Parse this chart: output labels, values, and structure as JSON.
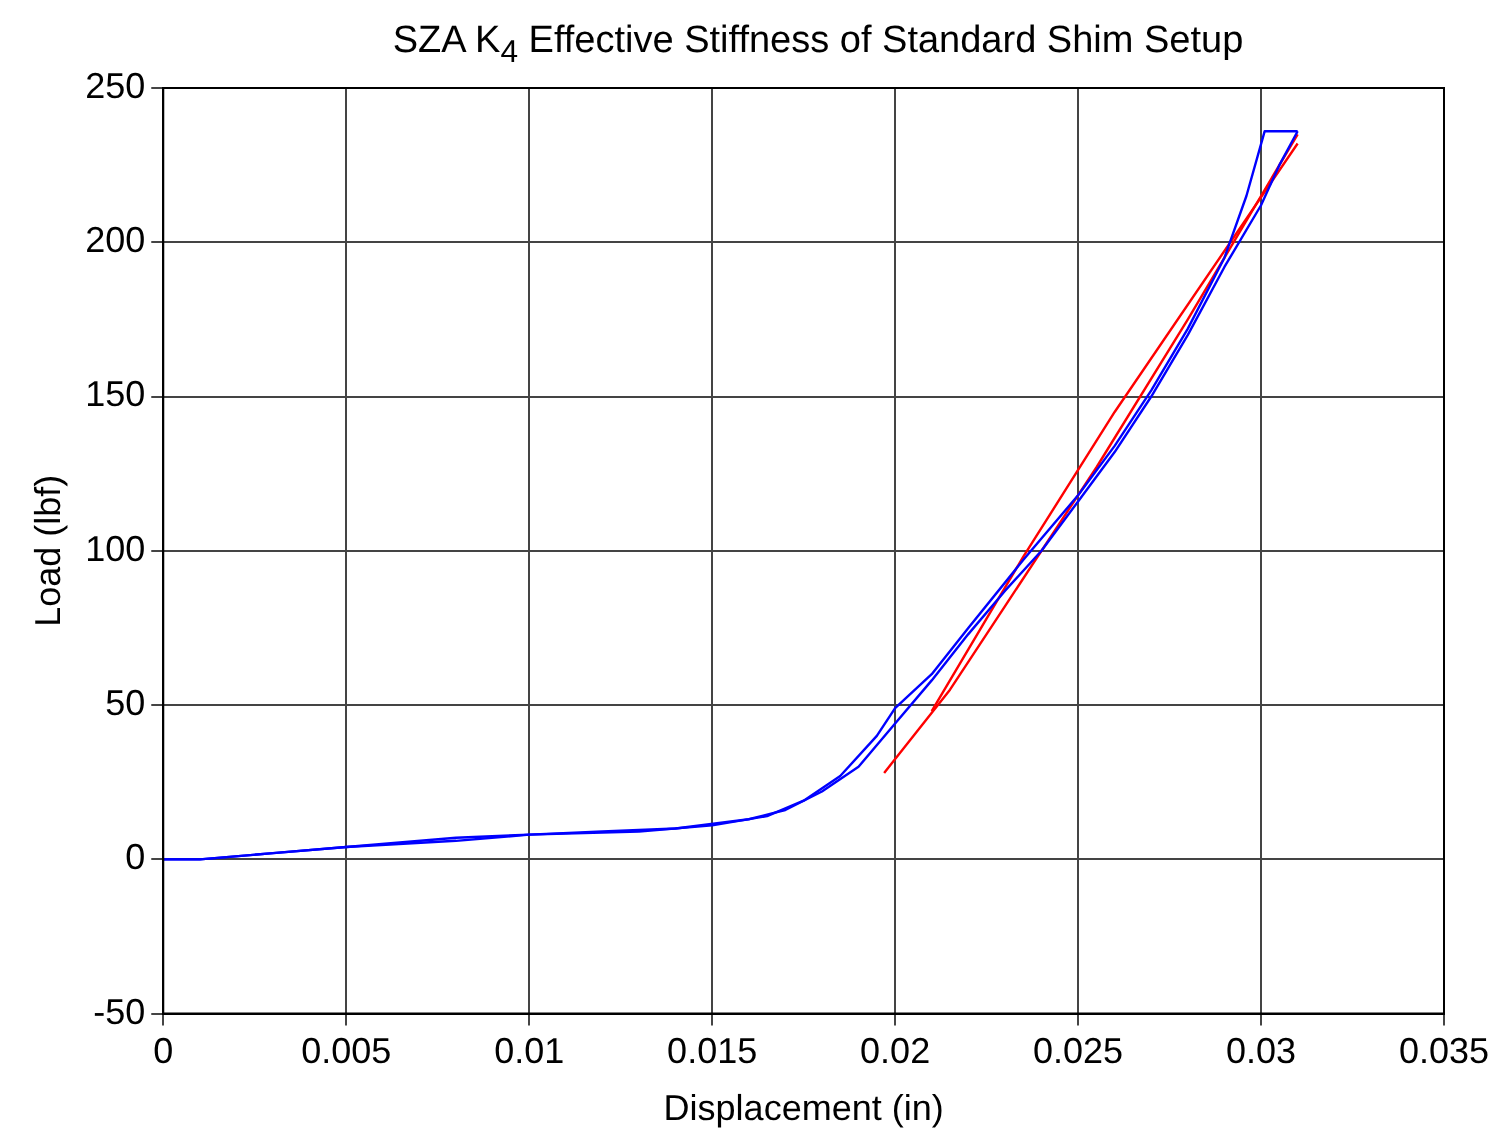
{
  "chart_data": {
    "type": "line",
    "title": "SZA K$_{4}$ Effective Stiffness of Standard Shim Setup",
    "xlabel": "Displacement (in)",
    "ylabel": "Load (lbf)",
    "xlim": [
      0,
      0.035
    ],
    "xticks": [
      0,
      0.005,
      0.01,
      0.015,
      0.02,
      0.025,
      0.03,
      0.035
    ],
    "ylim": [
      -50,
      250
    ],
    "yticks": [
      -50,
      0,
      50,
      100,
      150,
      200,
      250
    ],
    "grid": true,
    "legend": false,
    "marker": "none",
    "line_style": "solid",
    "series": [
      {
        "color": "#0000ff",
        "x": [
          0,
          0.001,
          0.003,
          0.005,
          0.008,
          0.01,
          0.013,
          0.015,
          0.0165,
          0.0175,
          0.0185,
          0.0195,
          0.02,
          0.021,
          0.022,
          0.0235,
          0.025,
          0.026,
          0.027,
          0.028,
          0.029,
          0.0296,
          0.0301,
          0.031
        ],
        "values": [
          0,
          0,
          2,
          4,
          6,
          8,
          9,
          11,
          14,
          19,
          27,
          40,
          49,
          60,
          75,
          97,
          118,
          134,
          152,
          172,
          195,
          215,
          236,
          236
        ]
      },
      {
        "color": "#0000ff",
        "x": [
          0.031,
          0.0305,
          0.03,
          0.029,
          0.028,
          0.027,
          0.026,
          0.025,
          0.024,
          0.023,
          0.022,
          0.021,
          0.02,
          0.019,
          0.018,
          0.017,
          0.016,
          0.014,
          0.012,
          0.01,
          0.008,
          0.005,
          0.003,
          0.001,
          0
        ],
        "values": [
          236,
          225,
          212,
          192,
          170,
          150,
          132,
          116,
          100,
          87,
          73,
          58,
          44,
          30,
          22,
          16,
          13,
          10,
          9,
          8,
          7,
          4,
          2,
          0,
          0
        ]
      },
      {
        "color": "#ff0000",
        "x": [
          0.0197,
          0.0215,
          0.023,
          0.0255,
          0.028,
          0.031
        ],
        "values": [
          28,
          55,
          82,
          127,
          175,
          235
        ]
      },
      {
        "color": "#ff0000",
        "x": [
          0.021,
          0.0235,
          0.026,
          0.031
        ],
        "values": [
          48,
          98,
          145,
          232
        ]
      }
    ]
  }
}
